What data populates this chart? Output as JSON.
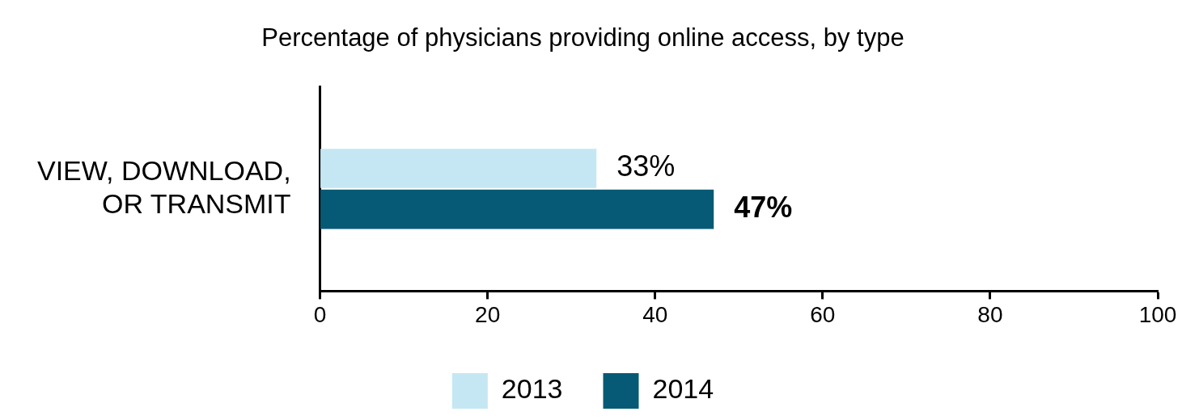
{
  "chart_data": {
    "type": "bar",
    "orientation": "horizontal",
    "title": "Percentage of physicians providing online access, by type",
    "categories": [
      "VIEW, DOWNLOAD, OR TRANSMIT"
    ],
    "series": [
      {
        "name": "2013",
        "color": "#c5e7f3",
        "values": [
          33
        ],
        "value_labels": [
          "33%"
        ]
      },
      {
        "name": "2014",
        "color": "#075a75",
        "values": [
          47
        ],
        "value_labels": [
          "47%"
        ]
      }
    ],
    "xlim": [
      0,
      100
    ],
    "xticks": [
      0,
      20,
      40,
      60,
      80,
      100
    ],
    "grid": false,
    "legend": "bottom"
  }
}
